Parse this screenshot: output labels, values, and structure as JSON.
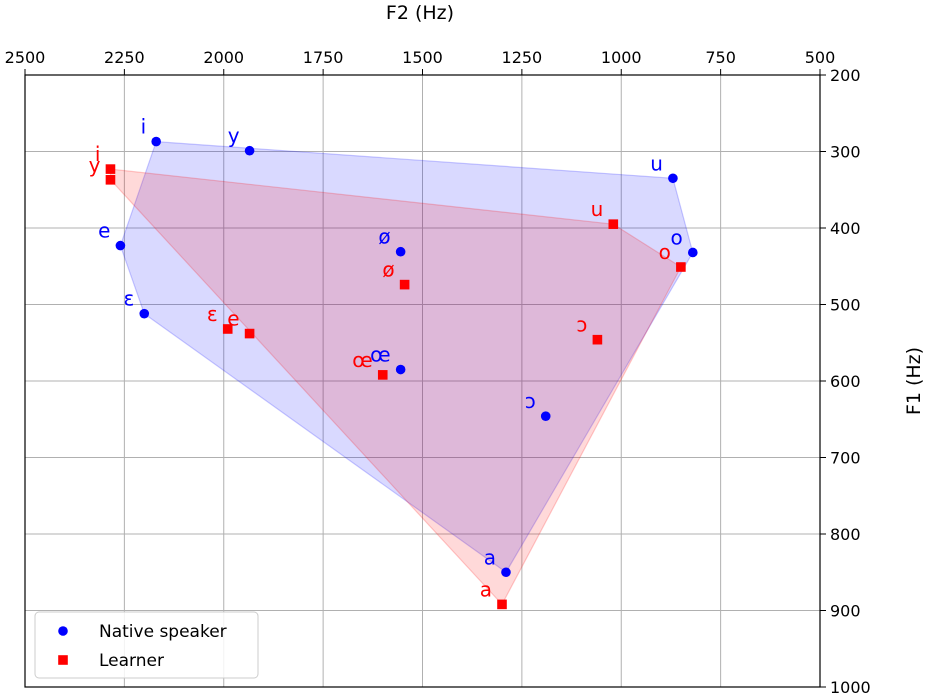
{
  "chart_data": {
    "type": "scatter",
    "xlabel": "F2 (Hz)",
    "ylabel": "F1 (Hz)",
    "xlim": [
      2500,
      500
    ],
    "ylim": [
      1000,
      200
    ],
    "x_axis_position": "top",
    "y_axis_position": "right",
    "x_ticks": [
      2500,
      2250,
      2000,
      1750,
      1500,
      1250,
      1000,
      750,
      500
    ],
    "y_ticks": [
      200,
      300,
      400,
      500,
      600,
      700,
      800,
      900,
      1000
    ],
    "grid": true,
    "legend": {
      "placement": "lower-left",
      "entries": [
        "Native speaker",
        "Learner"
      ]
    },
    "series": [
      {
        "name": "Native speaker",
        "color": "#0000ff",
        "marker": "circle",
        "hull_fill": "#0000ff",
        "points": [
          {
            "label": "i",
            "x": 2170,
            "y": 287
          },
          {
            "label": "y",
            "x": 1935,
            "y": 299
          },
          {
            "label": "u",
            "x": 870,
            "y": 335
          },
          {
            "label": "e",
            "x": 2260,
            "y": 423
          },
          {
            "label": "ø",
            "x": 1555,
            "y": 431
          },
          {
            "label": "o",
            "x": 820,
            "y": 432
          },
          {
            "label": "ɛ",
            "x": 2200,
            "y": 512
          },
          {
            "label": "œ",
            "x": 1555,
            "y": 585
          },
          {
            "label": "ɔ",
            "x": 1190,
            "y": 646
          },
          {
            "label": "a",
            "x": 1290,
            "y": 850
          }
        ],
        "hull_order": [
          "i",
          "u",
          "o",
          "a",
          "ɛ",
          "e"
        ]
      },
      {
        "name": "Learner",
        "color": "#ff0000",
        "marker": "square",
        "hull_fill": "#ff0000",
        "points": [
          {
            "label": "i",
            "x": 2285,
            "y": 323
          },
          {
            "label": "y",
            "x": 2285,
            "y": 337
          },
          {
            "label": "u",
            "x": 1020,
            "y": 395
          },
          {
            "label": "o",
            "x": 850,
            "y": 451
          },
          {
            "label": "ø",
            "x": 1545,
            "y": 474
          },
          {
            "label": "ɛ",
            "x": 1990,
            "y": 532
          },
          {
            "label": "e",
            "x": 1935,
            "y": 538
          },
          {
            "label": "ɔ",
            "x": 1060,
            "y": 546
          },
          {
            "label": "œ",
            "x": 1600,
            "y": 592
          },
          {
            "label": "a",
            "x": 1300,
            "y": 892
          }
        ],
        "hull_order": [
          "i",
          "u",
          "o",
          "a",
          "y"
        ]
      }
    ]
  }
}
